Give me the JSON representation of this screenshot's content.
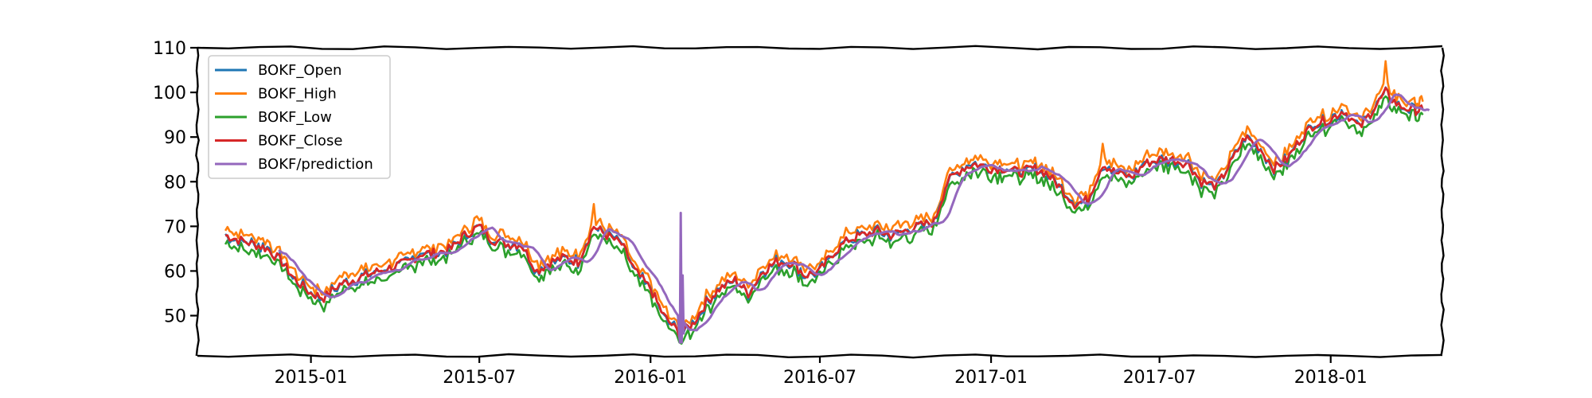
{
  "chart_data": {
    "type": "line",
    "title": "",
    "xlabel": "",
    "ylabel": "",
    "ylim": [
      41,
      110
    ],
    "xlim": [
      "2014-09-01",
      "2018-05-01"
    ],
    "x_ticks": [
      {
        "label": "2015-01",
        "date": "2015-01-01"
      },
      {
        "label": "2015-07",
        "date": "2015-07-01"
      },
      {
        "label": "2016-01",
        "date": "2016-01-01"
      },
      {
        "label": "2016-07",
        "date": "2016-07-01"
      },
      {
        "label": "2017-01",
        "date": "2017-01-01"
      },
      {
        "label": "2017-07",
        "date": "2017-07-01"
      },
      {
        "label": "2018-01",
        "date": "2018-01-01"
      }
    ],
    "y_ticks": [
      50,
      60,
      70,
      80,
      90,
      100,
      110
    ],
    "grid": false,
    "legend_position": "top-left",
    "close_series": [
      [
        "2014-10-01",
        68
      ],
      [
        "2014-10-15",
        67
      ],
      [
        "2014-11-01",
        66
      ],
      [
        "2014-11-15",
        65
      ],
      [
        "2014-12-01",
        62
      ],
      [
        "2014-12-15",
        58
      ],
      [
        "2015-01-01",
        55
      ],
      [
        "2015-01-15",
        54
      ],
      [
        "2015-02-01",
        57
      ],
      [
        "2015-02-15",
        58
      ],
      [
        "2015-03-01",
        59
      ],
      [
        "2015-03-15",
        60
      ],
      [
        "2015-04-01",
        61
      ],
      [
        "2015-04-15",
        62
      ],
      [
        "2015-05-01",
        64
      ],
      [
        "2015-05-15",
        64
      ],
      [
        "2015-06-01",
        65
      ],
      [
        "2015-06-15",
        68
      ],
      [
        "2015-07-01",
        70
      ],
      [
        "2015-07-15",
        67
      ],
      [
        "2015-08-01",
        66
      ],
      [
        "2015-08-15",
        66
      ],
      [
        "2015-09-01",
        60
      ],
      [
        "2015-09-15",
        62
      ],
      [
        "2015-10-01",
        63
      ],
      [
        "2015-10-15",
        62
      ],
      [
        "2015-11-01",
        70
      ],
      [
        "2015-11-15",
        68
      ],
      [
        "2015-12-01",
        66
      ],
      [
        "2015-12-15",
        60
      ],
      [
        "2016-01-01",
        56
      ],
      [
        "2016-01-15",
        50
      ],
      [
        "2016-02-01",
        46
      ],
      [
        "2016-02-15",
        48
      ],
      [
        "2016-03-01",
        53
      ],
      [
        "2016-03-15",
        56
      ],
      [
        "2016-04-01",
        58
      ],
      [
        "2016-04-15",
        55
      ],
      [
        "2016-05-01",
        60
      ],
      [
        "2016-05-15",
        62
      ],
      [
        "2016-06-01",
        62
      ],
      [
        "2016-06-15",
        59
      ],
      [
        "2016-07-01",
        60
      ],
      [
        "2016-07-15",
        64
      ],
      [
        "2016-08-01",
        67
      ],
      [
        "2016-08-15",
        68
      ],
      [
        "2016-09-01",
        69
      ],
      [
        "2016-09-15",
        68
      ],
      [
        "2016-10-01",
        69
      ],
      [
        "2016-10-15",
        70
      ],
      [
        "2016-11-01",
        71
      ],
      [
        "2016-11-15",
        80
      ],
      [
        "2016-12-01",
        83
      ],
      [
        "2016-12-15",
        84
      ],
      [
        "2017-01-01",
        83
      ],
      [
        "2017-01-15",
        83
      ],
      [
        "2017-02-01",
        82
      ],
      [
        "2017-02-15",
        83
      ],
      [
        "2017-03-01",
        82
      ],
      [
        "2017-03-15",
        79
      ],
      [
        "2017-04-01",
        75
      ],
      [
        "2017-04-15",
        76
      ],
      [
        "2017-05-01",
        84
      ],
      [
        "2017-05-15",
        82
      ],
      [
        "2017-06-01",
        81
      ],
      [
        "2017-06-15",
        84
      ],
      [
        "2017-07-01",
        85
      ],
      [
        "2017-07-15",
        85
      ],
      [
        "2017-08-01",
        84
      ],
      [
        "2017-08-15",
        80
      ],
      [
        "2017-09-01",
        79
      ],
      [
        "2017-09-15",
        84
      ],
      [
        "2017-10-01",
        90
      ],
      [
        "2017-10-15",
        88
      ],
      [
        "2017-11-01",
        83
      ],
      [
        "2017-11-15",
        85
      ],
      [
        "2017-12-01",
        90
      ],
      [
        "2017-12-15",
        93
      ],
      [
        "2018-01-01",
        94
      ],
      [
        "2018-01-15",
        96
      ],
      [
        "2018-02-01",
        92
      ],
      [
        "2018-02-15",
        96
      ],
      [
        "2018-03-01",
        100
      ],
      [
        "2018-03-15",
        97
      ],
      [
        "2018-04-01",
        96
      ],
      [
        "2018-04-10",
        96
      ]
    ],
    "series": [
      {
        "name": "BOKF_Open",
        "color": "#1f77b4"
      },
      {
        "name": "BOKF_High",
        "color": "#ff7f0e"
      },
      {
        "name": "BOKF_Low",
        "color": "#2ca02c"
      },
      {
        "name": "BOKF_Close",
        "color": "#d62728"
      },
      {
        "name": "BOKF/prediction",
        "color": "#9467bd"
      }
    ],
    "notable_points": [
      {
        "date": "2015-11-01",
        "series": "BOKF_High",
        "value": 75
      },
      {
        "date": "2016-02-08",
        "series": "BOKF/prediction",
        "value": 73
      },
      {
        "date": "2016-02-05",
        "series": "BOKF/prediction",
        "value": 44
      },
      {
        "date": "2018-03-01",
        "series": "BOKF_High",
        "value": 107
      }
    ]
  }
}
